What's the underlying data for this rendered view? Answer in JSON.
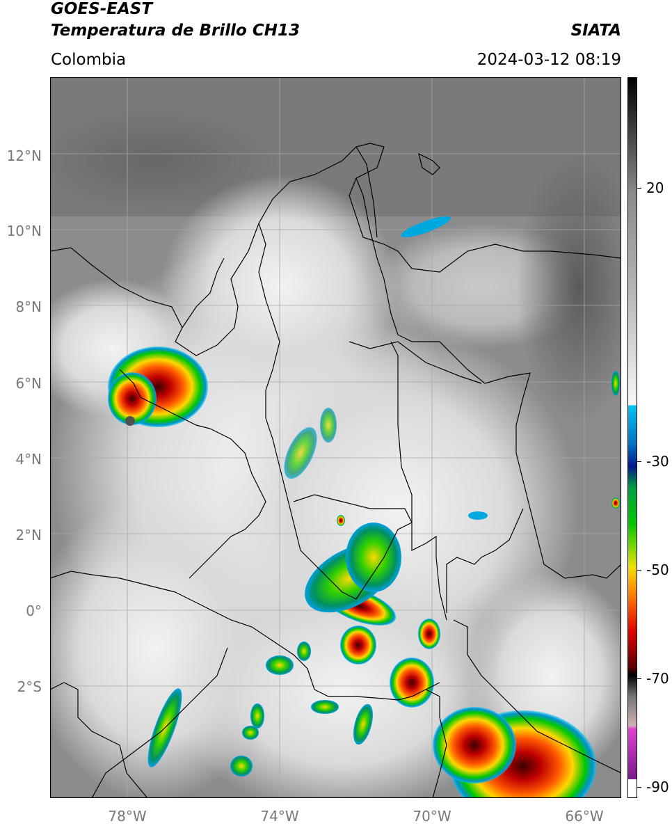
{
  "header": {
    "title_line1": "GOES-EAST",
    "title_line2": "Temperatura de Brillo CH13",
    "organization": "SIATA",
    "region": "Colombia",
    "timestamp": "2024-03-12 08:19"
  },
  "axes": {
    "lat_labels": [
      "12°N",
      "10°N",
      "8°N",
      "6°N",
      "4°N",
      "2°N",
      "0°",
      "2°S"
    ],
    "lon_labels": [
      "78°W",
      "74°W",
      "70°W",
      "66°W"
    ]
  },
  "colorbar": {
    "tick_labels": [
      "20",
      "-30",
      "-50",
      "-70",
      "-90"
    ],
    "colors": {
      "warm_black": "#000000",
      "gray": "#8a8a8a",
      "white": "#f5f5f5",
      "cyan": "#00c8f0",
      "navy": "#001a8a",
      "green": "#00c800",
      "yellow": "#f0e000",
      "orange": "#ff7a00",
      "red": "#e00000",
      "dark_red": "#5a0000",
      "magenta": "#e040d0",
      "purple": "#7a1a8a"
    }
  },
  "colors": {
    "background": "#8c8c8c",
    "cloud": "#e8e8e8",
    "border": "#000000",
    "grid": "#a0a0a0"
  }
}
